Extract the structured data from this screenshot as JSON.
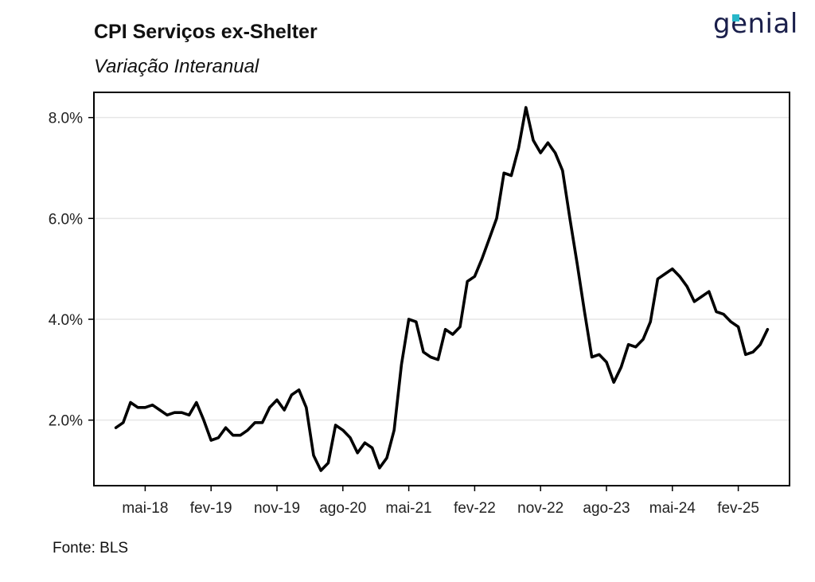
{
  "header": {
    "title": "CPI Serviços ex-Shelter",
    "subtitle": "Variação Interanual",
    "logo_text": "genial"
  },
  "footer": {
    "source": "Fonte: BLS"
  },
  "chart_data": {
    "type": "line",
    "title": "CPI Serviços ex-Shelter",
    "subtitle": "Variação Interanual",
    "xlabel": "",
    "ylabel": "",
    "x_start": "2018-01",
    "x_end": "2025-06",
    "ylim": [
      0.7,
      8.5
    ],
    "y_ticks": [
      2.0,
      4.0,
      6.0,
      8.0
    ],
    "y_tick_labels": [
      "2.0%",
      "4.0%",
      "6.0%",
      "8.0%"
    ],
    "x_ticks": [
      "2018-05",
      "2019-02",
      "2019-11",
      "2020-08",
      "2021-05",
      "2022-02",
      "2022-11",
      "2023-08",
      "2024-05",
      "2025-02"
    ],
    "x_tick_labels": [
      "mai-18",
      "fev-19",
      "nov-19",
      "ago-20",
      "mai-21",
      "fev-22",
      "nov-22",
      "ago-23",
      "mai-24",
      "fev-25"
    ],
    "grid": "horizontal",
    "line_color": "#000000",
    "series": [
      {
        "x": [
          "2018-01",
          "2018-02",
          "2018-03",
          "2018-04",
          "2018-05",
          "2018-06",
          "2018-07",
          "2018-08",
          "2018-09",
          "2018-10",
          "2018-11",
          "2018-12",
          "2019-01",
          "2019-02",
          "2019-03",
          "2019-04",
          "2019-05",
          "2019-06",
          "2019-07",
          "2019-08",
          "2019-09",
          "2019-10",
          "2019-11",
          "2019-12",
          "2020-01",
          "2020-02",
          "2020-03",
          "2020-04",
          "2020-05",
          "2020-06",
          "2020-07",
          "2020-08",
          "2020-09",
          "2020-10",
          "2020-11",
          "2020-12",
          "2021-01",
          "2021-02",
          "2021-03",
          "2021-04",
          "2021-05",
          "2021-06",
          "2021-07",
          "2021-08",
          "2021-09",
          "2021-10",
          "2021-11",
          "2021-12",
          "2022-01",
          "2022-02",
          "2022-03",
          "2022-04",
          "2022-05",
          "2022-06",
          "2022-07",
          "2022-08",
          "2022-09",
          "2022-10",
          "2022-11",
          "2022-12",
          "2023-01",
          "2023-02",
          "2023-03",
          "2023-04",
          "2023-05",
          "2023-06",
          "2023-07",
          "2023-08",
          "2023-09",
          "2023-10",
          "2023-11",
          "2023-12",
          "2024-01",
          "2024-02",
          "2024-03",
          "2024-04",
          "2024-05",
          "2024-06",
          "2024-07",
          "2024-08",
          "2024-09",
          "2024-10",
          "2024-11",
          "2024-12",
          "2025-01",
          "2025-02",
          "2025-03",
          "2025-04",
          "2025-05",
          "2025-06"
        ],
        "values": [
          1.85,
          1.95,
          2.35,
          2.25,
          2.25,
          2.3,
          2.2,
          2.1,
          2.15,
          2.15,
          2.1,
          2.35,
          2.0,
          1.6,
          1.65,
          1.85,
          1.7,
          1.7,
          1.8,
          1.95,
          1.95,
          2.25,
          2.4,
          2.2,
          2.5,
          2.6,
          2.25,
          1.3,
          1.0,
          1.15,
          1.9,
          1.8,
          1.65,
          1.35,
          1.55,
          1.45,
          1.05,
          1.25,
          1.8,
          3.1,
          4.0,
          3.95,
          3.35,
          3.25,
          3.2,
          3.8,
          3.7,
          3.85,
          4.75,
          4.85,
          5.2,
          5.6,
          6.0,
          6.9,
          6.85,
          7.4,
          8.2,
          7.55,
          7.3,
          7.5,
          7.3,
          6.95,
          6.0,
          5.1,
          4.15,
          3.25,
          3.3,
          3.15,
          2.75,
          3.05,
          3.5,
          3.45,
          3.6,
          3.95,
          4.8,
          4.9,
          5.0,
          4.85,
          4.65,
          4.35,
          4.45,
          4.55,
          4.15,
          4.1,
          3.95,
          3.85,
          3.3,
          3.35,
          3.5,
          3.8
        ]
      }
    ]
  }
}
